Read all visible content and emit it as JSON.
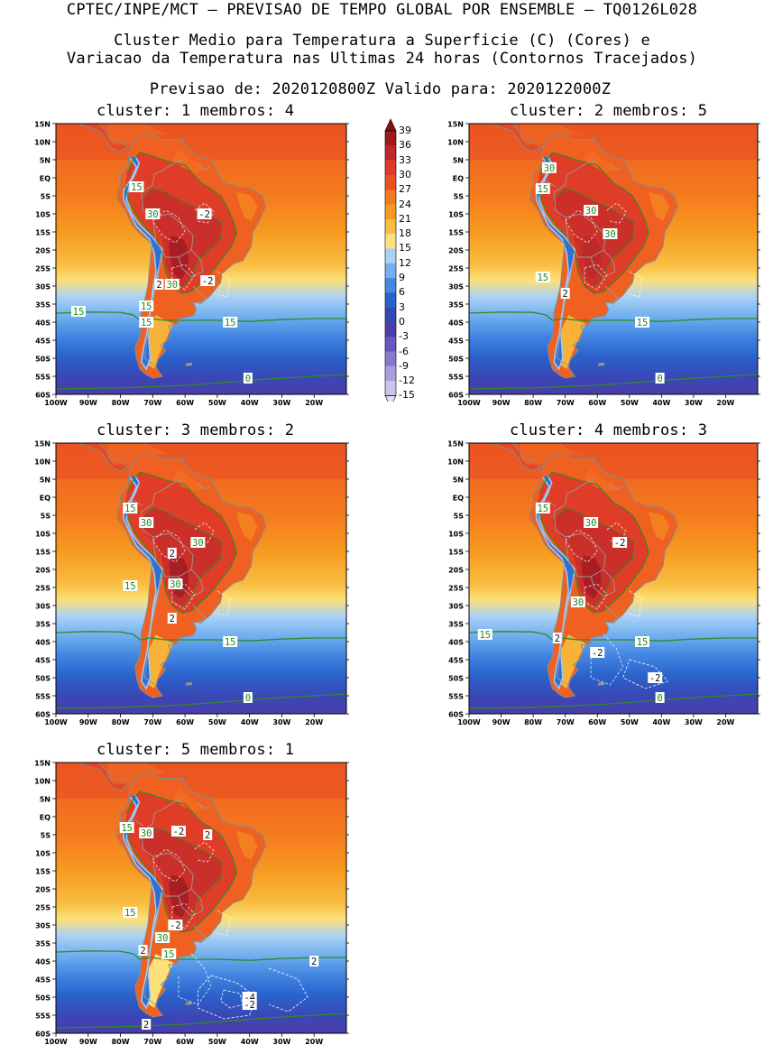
{
  "header": {
    "line1": "CPTEC/INPE/MCT – PREVISAO DE TEMPO GLOBAL POR ENSEMBLE – TQ0126L028",
    "line2": "Cluster Medio para Temperatura a Superficie (C) (Cores) e",
    "line3": "Variacao da Temperatura nas Ultimas 24 horas (Contornos Tracejados)",
    "line4": "Previsao de: 2020120800Z   Valido para: 2020122000Z"
  },
  "axes": {
    "lat_labels": [
      "15N",
      "10N",
      "5N",
      "EQ",
      "5S",
      "10S",
      "15S",
      "20S",
      "25S",
      "30S",
      "35S",
      "40S",
      "45S",
      "50S",
      "55S",
      "60S"
    ],
    "lon_labels": [
      "100W",
      "90W",
      "80W",
      "70W",
      "60W",
      "50W",
      "40W",
      "30W",
      "20W"
    ]
  },
  "colorbar": {
    "labels": [
      "39",
      "36",
      "33",
      "30",
      "27",
      "24",
      "21",
      "18",
      "15",
      "12",
      "9",
      "6",
      "3",
      "0",
      "-3",
      "-6",
      "-9",
      "-12",
      "-15"
    ],
    "colors": [
      "#a01818",
      "#c0262a",
      "#dd3a2a",
      "#ec5020",
      "#f47a1e",
      "#f79a20",
      "#f9bd42",
      "#fce07a",
      "#aad2f6",
      "#72b0ee",
      "#4488e2",
      "#2a62cc",
      "#3248b2",
      "#4a3eaa",
      "#6a56c0",
      "#8a78d0",
      "#ab9ddf",
      "#cbc3ec"
    ],
    "arrow_top": "#8b1010",
    "arrow_bottom": "#e6e1f5"
  },
  "panels": [
    {
      "title": "cluster: 1   membros: 4",
      "labels": [
        {
          "text": "15",
          "kind": "green"
        },
        {
          "text": "30",
          "kind": "green"
        },
        {
          "text": "-2",
          "kind": "white"
        },
        {
          "text": "2",
          "kind": "white"
        },
        {
          "text": "30",
          "kind": "green"
        },
        {
          "text": "-2",
          "kind": "white"
        },
        {
          "text": "15",
          "kind": "green"
        },
        {
          "text": "15",
          "kind": "green"
        },
        {
          "text": "15",
          "kind": "green"
        },
        {
          "text": "15",
          "kind": "green"
        },
        {
          "text": "0",
          "kind": "green"
        }
      ]
    },
    {
      "title": "cluster: 2   membros: 5",
      "labels": [
        {
          "text": "30",
          "kind": "green"
        },
        {
          "text": "15",
          "kind": "green"
        },
        {
          "text": "30",
          "kind": "green"
        },
        {
          "text": "30",
          "kind": "green"
        },
        {
          "text": "15",
          "kind": "green"
        },
        {
          "text": "2",
          "kind": "white"
        },
        {
          "text": "15",
          "kind": "green"
        },
        {
          "text": "0",
          "kind": "green"
        }
      ]
    },
    {
      "title": "cluster: 3   membros: 2",
      "labels": [
        {
          "text": "15",
          "kind": "green"
        },
        {
          "text": "30",
          "kind": "green"
        },
        {
          "text": "30",
          "kind": "green"
        },
        {
          "text": "2",
          "kind": "white"
        },
        {
          "text": "15",
          "kind": "green"
        },
        {
          "text": "30",
          "kind": "green"
        },
        {
          "text": "2",
          "kind": "white"
        },
        {
          "text": "15",
          "kind": "green"
        },
        {
          "text": "0",
          "kind": "green"
        }
      ]
    },
    {
      "title": "cluster: 4   membros: 3",
      "labels": [
        {
          "text": "15",
          "kind": "green"
        },
        {
          "text": "30",
          "kind": "green"
        },
        {
          "text": "-2",
          "kind": "white"
        },
        {
          "text": "30",
          "kind": "green"
        },
        {
          "text": "15",
          "kind": "green"
        },
        {
          "text": "2",
          "kind": "white"
        },
        {
          "text": "-2",
          "kind": "white"
        },
        {
          "text": "15",
          "kind": "green"
        },
        {
          "text": "-2",
          "kind": "white"
        },
        {
          "text": "0",
          "kind": "green"
        }
      ]
    },
    {
      "title": "cluster: 5   membros: 1",
      "labels": [
        {
          "text": "15",
          "kind": "green"
        },
        {
          "text": "30",
          "kind": "green"
        },
        {
          "text": "-2",
          "kind": "white"
        },
        {
          "text": "2",
          "kind": "white"
        },
        {
          "text": "15",
          "kind": "green"
        },
        {
          "text": "-2",
          "kind": "white"
        },
        {
          "text": "30",
          "kind": "green"
        },
        {
          "text": "2",
          "kind": "white"
        },
        {
          "text": "15",
          "kind": "green"
        },
        {
          "text": "2",
          "kind": "white"
        },
        {
          "text": "-4",
          "kind": "white"
        },
        {
          "text": "-2",
          "kind": "white"
        },
        {
          "text": "2",
          "kind": "white"
        }
      ]
    }
  ]
}
